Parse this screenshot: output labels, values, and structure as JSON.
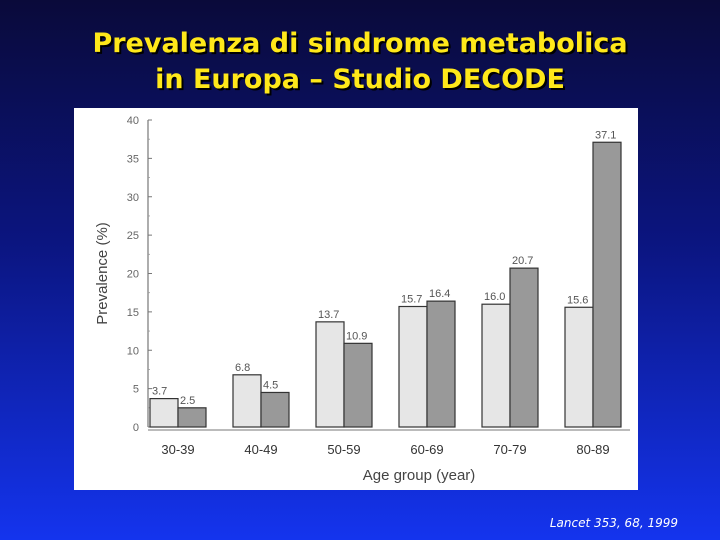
{
  "slide": {
    "title_line1": "Prevalenza di sindrome metabolica",
    "title_line2": "in Europa – Studio DECODE",
    "citation": "Lancet 353, 68, 1999"
  },
  "colors": {
    "series1": "#e6e6e6",
    "series2": "#999999",
    "title": "#ffe81a"
  },
  "chart_data": {
    "type": "bar",
    "title": "",
    "xlabel": "Age group (year)",
    "ylabel": "Prevalence (%)",
    "ylim": [
      0,
      40
    ],
    "yticks": [
      0,
      5,
      10,
      15,
      20,
      25,
      30,
      35,
      40
    ],
    "grid": false,
    "legend": "none",
    "categories": [
      "30-39",
      "40-49",
      "50-59",
      "60-69",
      "70-79",
      "80-89"
    ],
    "series": [
      {
        "values": [
          3.7,
          6.8,
          13.7,
          15.7,
          16.0,
          15.6
        ],
        "labels": [
          "3.7",
          "6.8",
          "13.7",
          "15.7",
          "16.0",
          "15.6"
        ]
      },
      {
        "values": [
          2.5,
          4.5,
          10.9,
          16.4,
          20.7,
          37.1
        ],
        "labels": [
          "2.5",
          "4.5",
          "10.9",
          "16.4",
          "20.7",
          "37.1"
        ]
      }
    ]
  }
}
